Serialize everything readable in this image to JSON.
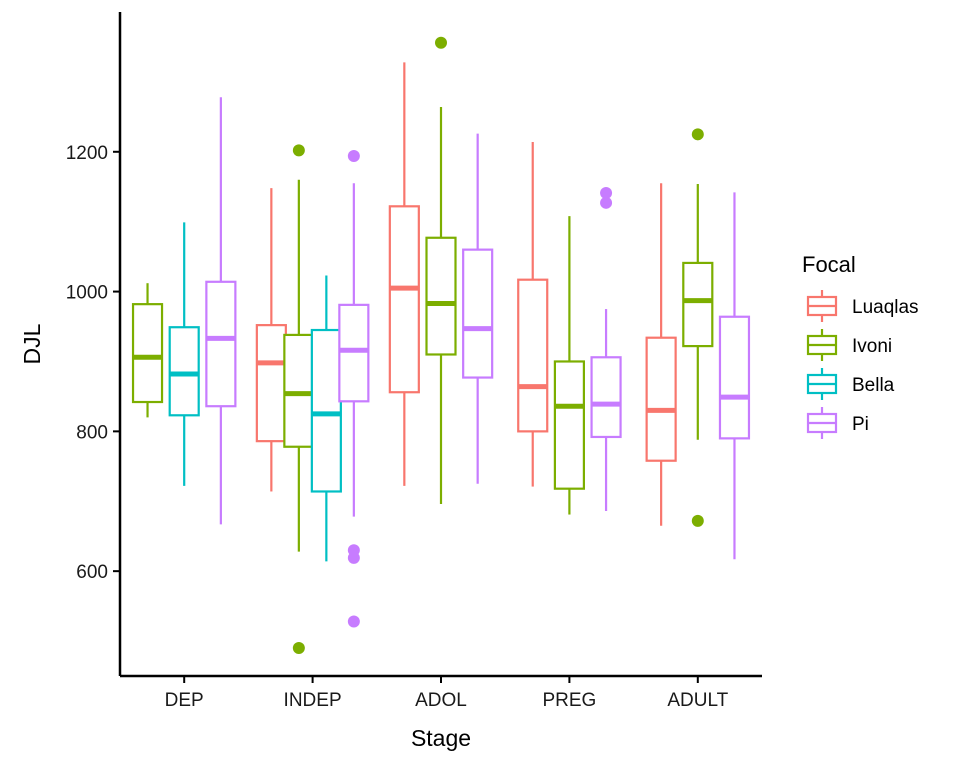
{
  "chart_data": {
    "type": "boxplot",
    "xlabel": "Stage",
    "ylabel": "DJL",
    "ylim": [
      450,
      1400
    ],
    "yticks": [
      600,
      800,
      1000,
      1200
    ],
    "categories": [
      "DEP",
      "INDEP",
      "ADOL",
      "PREG",
      "ADULT"
    ],
    "legend": {
      "title": "Focal",
      "position": "right"
    },
    "grid": false,
    "series": [
      {
        "name": "Luaqlas",
        "color": "#F8766D",
        "boxes": [
          null,
          {
            "category": "INDEP",
            "lower_whisker": 714,
            "q1": 786,
            "median": 898,
            "q3": 952,
            "upper_whisker": 1148,
            "outliers": []
          },
          {
            "category": "ADOL",
            "lower_whisker": 722,
            "q1": 856,
            "median": 1005,
            "q3": 1122,
            "upper_whisker": 1328,
            "outliers": []
          },
          {
            "category": "PREG",
            "lower_whisker": 721,
            "q1": 800,
            "median": 864,
            "q3": 1017,
            "upper_whisker": 1214,
            "outliers": []
          },
          {
            "category": "ADULT",
            "lower_whisker": 665,
            "q1": 758,
            "median": 830,
            "q3": 934,
            "upper_whisker": 1155,
            "outliers": []
          }
        ]
      },
      {
        "name": "Ivoni",
        "color": "#7CAE00",
        "boxes": [
          {
            "category": "DEP",
            "lower_whisker": 820,
            "q1": 842,
            "median": 906,
            "q3": 982,
            "upper_whisker": 1012,
            "outliers": []
          },
          {
            "category": "INDEP",
            "lower_whisker": 628,
            "q1": 778,
            "median": 854,
            "q3": 938,
            "upper_whisker": 1160,
            "outliers": [
              1202,
              490
            ]
          },
          {
            "category": "ADOL",
            "lower_whisker": 696,
            "q1": 910,
            "median": 983,
            "q3": 1077,
            "upper_whisker": 1264,
            "outliers": [
              1356
            ]
          },
          {
            "category": "PREG",
            "lower_whisker": 681,
            "q1": 718,
            "median": 836,
            "q3": 900,
            "upper_whisker": 1108,
            "outliers": []
          },
          {
            "category": "ADULT",
            "lower_whisker": 788,
            "q1": 922,
            "median": 987,
            "q3": 1041,
            "upper_whisker": 1154,
            "outliers": [
              1225,
              672
            ]
          }
        ]
      },
      {
        "name": "Bella",
        "color": "#00BFC4",
        "boxes": [
          {
            "category": "DEP",
            "lower_whisker": 722,
            "q1": 823,
            "median": 882,
            "q3": 949,
            "upper_whisker": 1099,
            "outliers": []
          },
          {
            "category": "INDEP",
            "lower_whisker": 614,
            "q1": 714,
            "median": 825,
            "q3": 945,
            "upper_whisker": 1023,
            "outliers": []
          },
          null,
          null,
          null
        ]
      },
      {
        "name": "Pi",
        "color": "#C77CFF",
        "boxes": [
          {
            "category": "DEP",
            "lower_whisker": 667,
            "q1": 836,
            "median": 933,
            "q3": 1014,
            "upper_whisker": 1278,
            "outliers": []
          },
          {
            "category": "INDEP",
            "lower_whisker": 678,
            "q1": 843,
            "median": 916,
            "q3": 981,
            "upper_whisker": 1155,
            "outliers": [
              1194,
              630,
              619,
              528
            ]
          },
          {
            "category": "ADOL",
            "lower_whisker": 725,
            "q1": 877,
            "median": 947,
            "q3": 1060,
            "upper_whisker": 1226,
            "outliers": []
          },
          {
            "category": "PREG",
            "lower_whisker": 686,
            "q1": 792,
            "median": 839,
            "q3": 906,
            "upper_whisker": 975,
            "outliers": [
              1141,
              1127
            ]
          },
          {
            "category": "ADULT",
            "lower_whisker": 617,
            "q1": 790,
            "median": 849,
            "q3": 964,
            "upper_whisker": 1142,
            "outliers": []
          }
        ]
      }
    ]
  }
}
